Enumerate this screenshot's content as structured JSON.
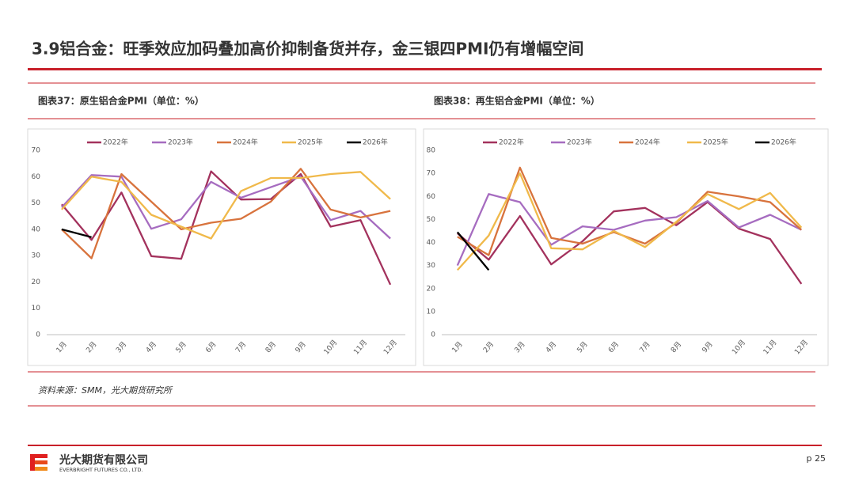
{
  "page": {
    "title": "3.9铝合金：旺季效应加码叠加高价抑制备货并存，金三银四PMI仍有增幅空间",
    "source": "资料来源：SMM，光大期货研究所",
    "company": "光大期货有限公司",
    "company_en": "EVERBRIGHT FUTURES CO., LTD.",
    "page_number": "p 25"
  },
  "chart_data": [
    {
      "type": "line",
      "title": "图表37：原生铝合金PMI（单位：%）",
      "categories": [
        "1月",
        "2月",
        "3月",
        "4月",
        "5月",
        "6月",
        "7月",
        "8月",
        "9月",
        "10月",
        "11月",
        "12月"
      ],
      "ylim": [
        0,
        70
      ],
      "yticks": [
        0,
        10,
        20,
        30,
        40,
        50,
        60,
        70
      ],
      "grid": false,
      "series": [
        {
          "name": "2022年",
          "color": "#a3325d",
          "values": [
            49.5,
            36,
            54,
            29.8,
            28.8,
            62,
            51.3,
            51.5,
            61,
            41,
            43.5,
            19
          ]
        },
        {
          "name": "2023年",
          "color": "#a66cc0",
          "values": [
            48.3,
            60.6,
            60,
            40.2,
            43.8,
            58,
            52,
            56,
            60,
            43.5,
            47,
            36.5
          ]
        },
        {
          "name": "2024年",
          "color": "#d8733d",
          "values": [
            40,
            29,
            61,
            50.5,
            40,
            42.5,
            44,
            50.5,
            63,
            47.5,
            44.5,
            47
          ]
        },
        {
          "name": "2025年",
          "color": "#f0b94a",
          "values": [
            47.5,
            60,
            58,
            45.5,
            41,
            36.5,
            54.5,
            59.5,
            59.5,
            61,
            61.8,
            51.5
          ]
        },
        {
          "name": "2026年",
          "color": "#000000",
          "values": [
            40,
            37,
            null,
            null,
            null,
            null,
            null,
            null,
            null,
            null,
            null,
            null
          ]
        }
      ]
    },
    {
      "type": "line",
      "title": "图表38：再生铝合金PMI（单位：%）",
      "categories": [
        "1月",
        "2月",
        "3月",
        "4月",
        "5月",
        "6月",
        "7月",
        "8月",
        "9月",
        "10月",
        "11月",
        "12月"
      ],
      "ylim": [
        0,
        80
      ],
      "yticks": [
        0,
        10,
        20,
        30,
        40,
        50,
        60,
        70,
        80
      ],
      "grid": false,
      "series": [
        {
          "name": "2022年",
          "color": "#a3325d",
          "values": [
            44,
            32.5,
            51.5,
            30.5,
            40.5,
            53.5,
            55,
            47.5,
            57.5,
            46,
            41.5,
            22
          ]
        },
        {
          "name": "2023年",
          "color": "#a66cc0",
          "values": [
            30,
            61,
            57.5,
            39,
            47,
            45.5,
            49.5,
            51,
            58,
            46.5,
            52,
            45.5
          ]
        },
        {
          "name": "2024年",
          "color": "#d8733d",
          "values": [
            42.5,
            34.5,
            72.5,
            42,
            39.5,
            44.5,
            39.5,
            48.5,
            62,
            60,
            57.5,
            45.5
          ]
        },
        {
          "name": "2025年",
          "color": "#f0b94a",
          "values": [
            28,
            43,
            70,
            37.5,
            37,
            45,
            38,
            49,
            61,
            54.5,
            61.5,
            46.5
          ]
        },
        {
          "name": "2026年",
          "color": "#000000",
          "values": [
            44.5,
            28,
            null,
            null,
            null,
            null,
            null,
            null,
            null,
            null,
            null,
            null
          ]
        }
      ]
    }
  ]
}
